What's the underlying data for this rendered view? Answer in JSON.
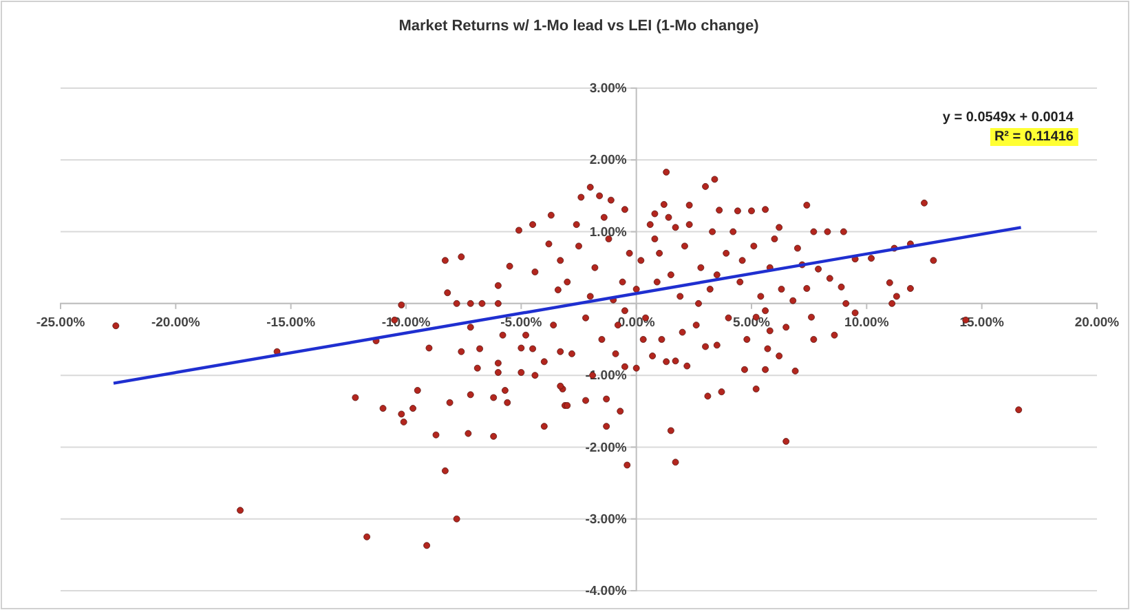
{
  "chart_data": {
    "type": "scatter",
    "title": "Market Returns w/ 1-Mo lead vs LEI (1-Mo change)",
    "xlim": [
      -25,
      20
    ],
    "ylim": [
      -4,
      3
    ],
    "xticks": [
      {
        "value": -25,
        "label": "-25.00%"
      },
      {
        "value": -20,
        "label": "-20.00%"
      },
      {
        "value": -15,
        "label": "-15.00%"
      },
      {
        "value": -10,
        "label": "-10.00%"
      },
      {
        "value": -5,
        "label": "-5.00%"
      },
      {
        "value": 0,
        "label": "0.00%"
      },
      {
        "value": 5,
        "label": "5.00%"
      },
      {
        "value": 10,
        "label": "10.00%"
      },
      {
        "value": 15,
        "label": "15.00%"
      },
      {
        "value": 20,
        "label": "20.00%"
      }
    ],
    "yticks": [
      {
        "value": -4,
        "label": "-4.00%"
      },
      {
        "value": -3,
        "label": "-3.00%"
      },
      {
        "value": -2,
        "label": "-2.00%"
      },
      {
        "value": -1,
        "label": "-1.00%"
      },
      {
        "value": 0,
        "label": null
      },
      {
        "value": 1,
        "label": "1.00%"
      },
      {
        "value": 2,
        "label": "2.00%"
      },
      {
        "value": 3,
        "label": "3.00%"
      }
    ],
    "grid": "y",
    "annotations": [
      "y = 0.0549x + 0.0014",
      "R² = 0.11416"
    ],
    "series": [
      {
        "marker": "circle",
        "color": "#b3261e",
        "x": [
          -22.6,
          -15.6,
          -17.2,
          -11.7,
          -9.1,
          -7.8,
          -8.3,
          -12.2,
          -11.0,
          -10.2,
          -10.1,
          -9.7,
          -9.5,
          -8.7,
          -8.1,
          -7.3,
          -7.2,
          -6.2,
          -6.2,
          -5.7,
          -5.6,
          -4.0,
          -3.1,
          -10.2,
          -10.5,
          -11.3,
          -8.3,
          -7.6,
          -8.2,
          -7.8,
          -7.2,
          -6.7,
          -6.0,
          -5.1,
          -4.5,
          -3.7,
          -5.5,
          -6.0,
          -4.4,
          -3.8,
          -3.4,
          -9.0,
          -7.6,
          -6.8,
          -7.2,
          -6.9,
          -6.0,
          -6.0,
          -5.0,
          -4.4,
          -5.0,
          -4.5,
          -3.3,
          -5.8,
          -4.0,
          -3.2,
          -4.8,
          12.5,
          12.9,
          16.6,
          14.3,
          11.9,
          11.3,
          11.0,
          11.1,
          11.9,
          11.2,
          10.2,
          9.5,
          9.5,
          9.0,
          8.3,
          7.7,
          7.4,
          8.9,
          9.1,
          8.4,
          8.6,
          7.7,
          6.9,
          6.5,
          5.6,
          5.2,
          4.7,
          6.2,
          5.7,
          3.7,
          3.1,
          3.5,
          2.2,
          1.5,
          1.7,
          -0.4,
          -0.7,
          -1.3,
          -1.3,
          -2.2,
          -3.0,
          -3.3,
          0,
          -0.5,
          1.3,
          0.7,
          3.0,
          3.4,
          -2.0,
          -1.6,
          -1.1,
          -0.5,
          -2.4,
          6.2,
          5.6,
          5.0,
          4.4,
          2.3,
          1.2,
          0.8,
          1.7,
          7.0,
          7.2,
          7.9,
          7.4,
          7.6,
          6.8,
          6.5,
          5.8,
          5.2,
          1.3,
          -2.5,
          -1.8,
          -1.2,
          -0.6,
          0.2,
          0.8,
          1.5,
          2.1,
          2.8,
          3.3,
          3.9,
          4.5,
          5.1,
          5.8,
          6.3,
          -3.0,
          -2.2,
          -1.5,
          -0.8,
          0.4,
          1.1,
          1.9,
          2.6,
          3.2,
          4.0,
          4.8,
          5.4,
          -3.6,
          -2.8,
          -2.0,
          -1.0,
          0.0,
          0.6,
          1.4,
          2.3,
          3.6,
          4.2,
          -0.3,
          -3.3,
          -2.6,
          -1.4,
          2.7,
          3.0,
          1.7,
          0.9,
          -0.9,
          -1.9,
          4.6,
          5.6,
          6.0,
          2.0,
          1.0,
          3.5,
          -0.5,
          0.3
        ],
        "values": [
          -0.31,
          -0.67,
          -2.88,
          -3.25,
          -3.37,
          -3.0,
          -2.33,
          -1.31,
          -1.46,
          -1.54,
          -1.65,
          -1.46,
          -1.21,
          -1.83,
          -1.38,
          -1.81,
          -1.27,
          -1.85,
          -1.31,
          -1.21,
          -1.38,
          -1.71,
          -1.42,
          -0.02,
          -0.23,
          -0.52,
          0.6,
          0.65,
          0.15,
          0,
          0,
          0,
          0,
          1.02,
          1.1,
          1.23,
          0.52,
          0.25,
          0.44,
          0.83,
          0.19,
          -0.62,
          -0.67,
          -0.63,
          -0.33,
          -0.9,
          -0.83,
          -0.96,
          -0.96,
          -1.0,
          -0.62,
          -0.63,
          -0.67,
          -0.44,
          -0.81,
          -1.19,
          -0.44,
          1.4,
          0.6,
          -1.48,
          -0.23,
          0.21,
          0.1,
          0.29,
          0,
          0.83,
          0.77,
          0.63,
          0.62,
          -0.13,
          1.0,
          1.0,
          1.0,
          1.37,
          0.23,
          0,
          0.35,
          -0.44,
          -0.5,
          -0.94,
          -1.92,
          -0.92,
          -1.19,
          -0.92,
          -0.73,
          -0.63,
          -1.23,
          -1.29,
          -0.58,
          -0.87,
          -1.77,
          -2.21,
          -2.25,
          -1.5,
          -1.71,
          -1.33,
          -1.35,
          -1.42,
          -1.15,
          -0.9,
          -0.88,
          -0.81,
          -0.73,
          1.63,
          1.73,
          1.62,
          1.5,
          1.44,
          1.31,
          1.48,
          1.06,
          1.31,
          1.29,
          1.29,
          1.37,
          1.38,
          1.25,
          1.06,
          0.77,
          0.54,
          0.48,
          0.21,
          -0.19,
          0.04,
          -0.33,
          -0.38,
          -0.19,
          1.83,
          0.8,
          0.5,
          0.9,
          0.3,
          0.6,
          0.9,
          0.4,
          0.8,
          0.5,
          1.0,
          0.7,
          0.3,
          0.8,
          0.5,
          0.2,
          0.3,
          -0.2,
          -0.5,
          -0.3,
          -0.2,
          -0.5,
          0.1,
          -0.3,
          0.2,
          -0.2,
          -0.5,
          0.1,
          -0.3,
          -0.7,
          0.1,
          0.05,
          0.2,
          1.1,
          1.2,
          1.1,
          1.3,
          1.0,
          0.7,
          0.6,
          1.1,
          1.2,
          0.0,
          -0.6,
          -0.8,
          0.3,
          -0.7,
          -1.0,
          0.6,
          -0.1,
          0.9,
          -0.4,
          0.7,
          0.4,
          -0.1,
          -0.5
        ]
      },
      {
        "type": "line",
        "color": "#1f2fd0",
        "x": [
          -22.7,
          16.7
        ],
        "values": [
          -1.11,
          1.06
        ]
      }
    ]
  }
}
